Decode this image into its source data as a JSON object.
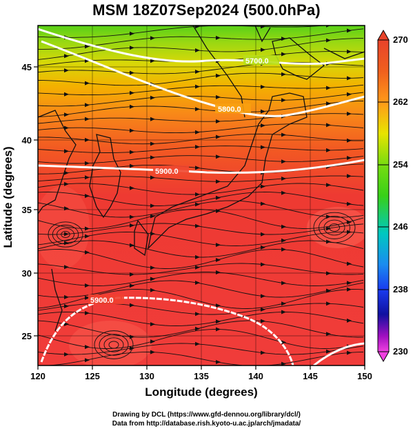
{
  "title": "MSM 18Z07Sep2024 (500.0hPa)",
  "axes": {
    "x_label": "Longitude (degrees)",
    "y_label": "Latitude  (degrees)",
    "x_ticks": [
      "120",
      "125",
      "130",
      "135",
      "140",
      "145",
      "150"
    ],
    "y_ticks": [
      "45",
      "40",
      "35",
      "30",
      "25"
    ]
  },
  "colorbar": {
    "ticks": [
      "270",
      "262",
      "254",
      "246",
      "238",
      "230"
    ],
    "min": 230,
    "max": 270,
    "colors": {
      "top": "#e8432a",
      "orange": "#ff9a1a",
      "yellow": "#e8e400",
      "green": "#38d018",
      "cyan": "#00c8c0",
      "blue": "#1a3cf0",
      "navy": "#1010a0",
      "purple": "#a010c0",
      "magenta": "#f040e0"
    }
  },
  "contours": [
    {
      "label": "5700.0"
    },
    {
      "label": "5800.0"
    },
    {
      "label": "5900.0"
    },
    {
      "label": "5900.0"
    }
  ],
  "credits": {
    "line1": "Drawing by DCL (https://www.gfd-dennou.org/library/dcl/)",
    "line2": "Data from http://database.rish.kyoto-u.ac.jp/arch/jmadata/"
  }
}
